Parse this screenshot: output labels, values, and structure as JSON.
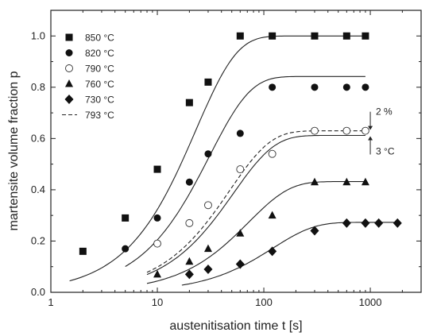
{
  "chart_data": {
    "type": "scatter",
    "xlabel": "austenitisation time  t [s]",
    "ylabel": "martensite volume fraction  p",
    "xscale": "log",
    "xlim": [
      1,
      3000
    ],
    "ylim": [
      0.0,
      1.1
    ],
    "x_ticks": [
      1,
      10,
      100,
      1000
    ],
    "x_tick_labels": [
      "1",
      "10",
      "100",
      "1000"
    ],
    "y_ticks": [
      0.0,
      0.2,
      0.4,
      0.6,
      0.8,
      1.0
    ],
    "y_tick_labels": [
      "0.0",
      "0.2",
      "0.4",
      "0.6",
      "0.8",
      "1.0"
    ],
    "legend_position": "top-left",
    "series": [
      {
        "name": "850 °C",
        "marker": "square",
        "x": [
          2,
          5,
          10,
          20,
          30,
          60,
          120,
          300,
          600,
          900
        ],
        "y": [
          0.16,
          0.29,
          0.48,
          0.74,
          0.82,
          1.0,
          1.0,
          1.0,
          1.0,
          1.0
        ],
        "curve": {
          "xmin": 1.5,
          "xmax": 900,
          "pmax": 1.0,
          "tau": 23,
          "n": 1.13
        }
      },
      {
        "name": "820 °C",
        "marker": "circle",
        "x": [
          5,
          10,
          20,
          30,
          60,
          120,
          300,
          600,
          900
        ],
        "y": [
          0.17,
          0.29,
          0.43,
          0.54,
          0.62,
          0.8,
          0.8,
          0.8,
          0.8
        ],
        "curve": {
          "xmin": 5,
          "xmax": 900,
          "pmax": 0.842,
          "tau": 31,
          "n": 1.13
        }
      },
      {
        "name": "790 °C",
        "marker": "open-circle",
        "x": [
          10,
          20,
          30,
          60,
          120,
          300,
          600,
          900
        ],
        "y": [
          0.19,
          0.27,
          0.34,
          0.48,
          0.54,
          0.63,
          0.63,
          0.63
        ],
        "curve": {
          "xmin": 8,
          "xmax": 900,
          "pmax": 0.612,
          "tau": 52,
          "n": 1.13
        }
      },
      {
        "name": "760 °C",
        "marker": "triangle",
        "x": [
          10,
          20,
          30,
          60,
          120,
          300,
          600,
          900
        ],
        "y": [
          0.07,
          0.12,
          0.17,
          0.23,
          0.3,
          0.43,
          0.43,
          0.43
        ],
        "curve": {
          "xmin": 8,
          "xmax": 900,
          "pmax": 0.432,
          "tau": 72,
          "n": 1.13
        }
      },
      {
        "name": "730 °C",
        "marker": "diamond",
        "x": [
          20,
          30,
          60,
          120,
          300,
          600,
          900,
          1200,
          1800
        ],
        "y": [
          0.07,
          0.09,
          0.11,
          0.16,
          0.24,
          0.27,
          0.27,
          0.27,
          0.27
        ],
        "curve": {
          "xmin": 17,
          "xmax": 1800,
          "pmax": 0.273,
          "tau": 122,
          "n": 1.13
        }
      },
      {
        "name": "793 °C",
        "marker": "dashed-line",
        "x": [],
        "y": [],
        "curve": {
          "xmin": 8,
          "xmax": 900,
          "pmax": 0.63,
          "tau": 48,
          "n": 1.13
        }
      }
    ],
    "annotations": [
      {
        "text": "2 %",
        "x": 1000,
        "y": 0.7
      },
      {
        "text": "3 °C",
        "x": 1000,
        "y": 0.53
      }
    ]
  }
}
